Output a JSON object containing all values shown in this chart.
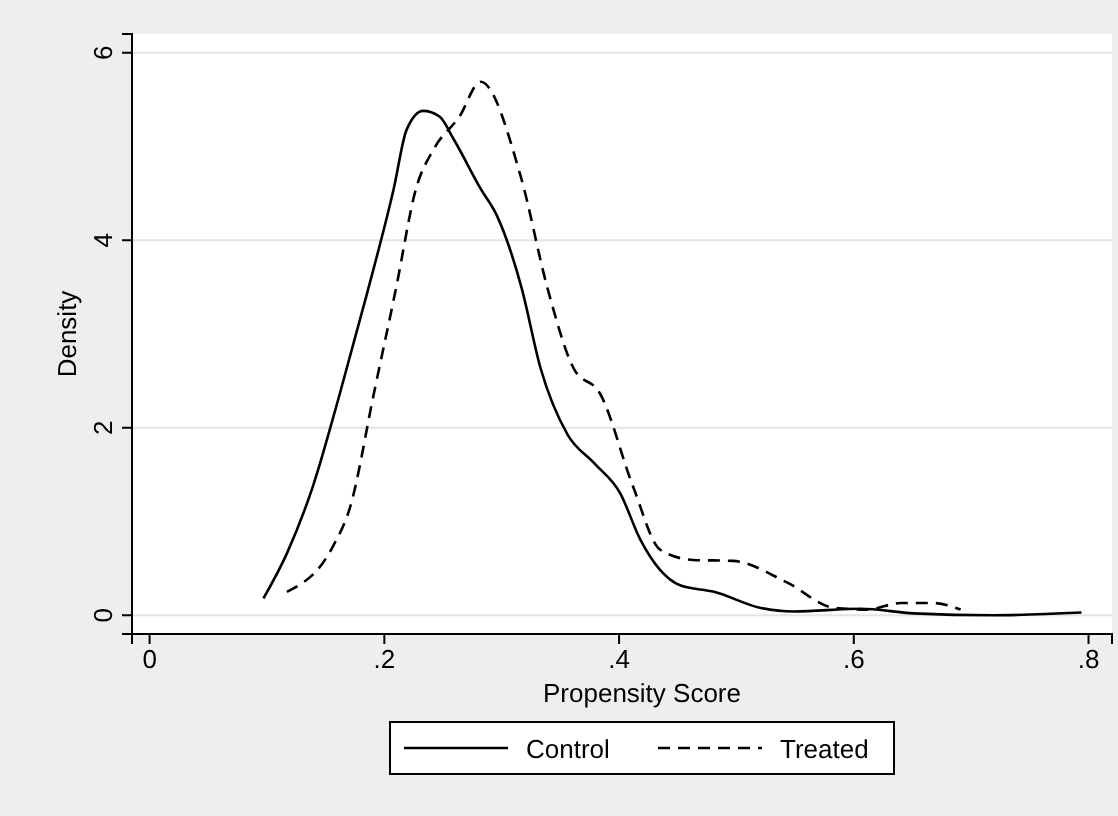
{
  "chart_data": {
    "type": "line",
    "xlabel": "Propensity Score",
    "ylabel": "Density",
    "xlim": [
      -0.015,
      0.82
    ],
    "ylim": [
      -0.2,
      6.2
    ],
    "xticks": [
      {
        "value": 0,
        "label": "0"
      },
      {
        "value": 0.2,
        "label": ".2"
      },
      {
        "value": 0.4,
        "label": ".4"
      },
      {
        "value": 0.6,
        "label": ".6"
      },
      {
        "value": 0.8,
        "label": ".8"
      }
    ],
    "yticks": [
      0,
      2,
      4,
      6
    ],
    "grid": "y",
    "legend": "bottom",
    "marker": "none",
    "series": [
      {
        "name": "Control",
        "color": "#000000",
        "line_style": "solid",
        "x": [
          0.097,
          0.117,
          0.139,
          0.162,
          0.185,
          0.208,
          0.219,
          0.233,
          0.247,
          0.259,
          0.282,
          0.296,
          0.317,
          0.333,
          0.356,
          0.379,
          0.401,
          0.418,
          0.452,
          0.481,
          0.52,
          0.549,
          0.606,
          0.651,
          0.719,
          0.794
        ],
        "values": [
          0.18,
          0.66,
          1.37,
          2.36,
          3.42,
          4.55,
          5.18,
          5.38,
          5.32,
          5.08,
          4.55,
          4.26,
          3.49,
          2.64,
          1.93,
          1.62,
          1.3,
          0.81,
          0.32,
          0.25,
          0.08,
          0.04,
          0.07,
          0.02,
          0.0,
          0.03
        ]
      },
      {
        "name": "Treated",
        "color": "#000000",
        "line_style": "dashed",
        "x": [
          0.117,
          0.156,
          0.171,
          0.191,
          0.21,
          0.227,
          0.242,
          0.264,
          0.282,
          0.316,
          0.339,
          0.361,
          0.384,
          0.412,
          0.435,
          0.463,
          0.497,
          0.543,
          0.583,
          0.611,
          0.64,
          0.668,
          0.691
        ],
        "values": [
          0.25,
          0.73,
          1.16,
          2.36,
          3.49,
          4.55,
          4.97,
          5.32,
          5.69,
          4.69,
          3.49,
          2.64,
          2.36,
          1.37,
          0.7,
          0.59,
          0.58,
          0.35,
          0.08,
          0.06,
          0.13,
          0.13,
          0.06
        ]
      }
    ]
  }
}
